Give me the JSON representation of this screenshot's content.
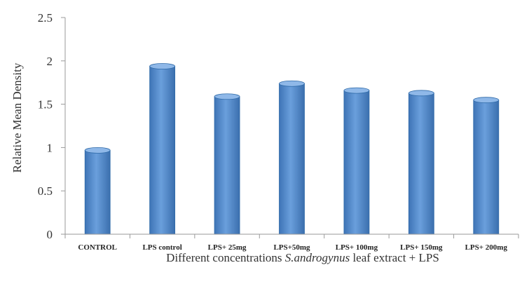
{
  "chart_data": {
    "type": "bar",
    "categories": [
      "CONTROL",
      "LPS control",
      "LPS+ 25mg",
      "LPS+50mg",
      "LPS+ 100mg",
      "LPS+ 150mg",
      "LPS+ 200mg"
    ],
    "values": [
      1.0,
      1.97,
      1.62,
      1.77,
      1.69,
      1.66,
      1.58
    ],
    "ylabel": "Relative Mean Density",
    "xlabel_parts": [
      "Different concentrations ",
      "S.androgynus",
      " leaf extract + LPS"
    ],
    "ylim": [
      0,
      2.5
    ],
    "yticks": [
      "0",
      "0.5",
      "1",
      "1.5",
      "2",
      "2.5"
    ],
    "grid": false,
    "colors": {
      "bar": "#5b8fd0",
      "bar_dark": "#2f6aa8",
      "bar_light": "#8fb8e8",
      "axis": "#9a9a9a"
    }
  }
}
